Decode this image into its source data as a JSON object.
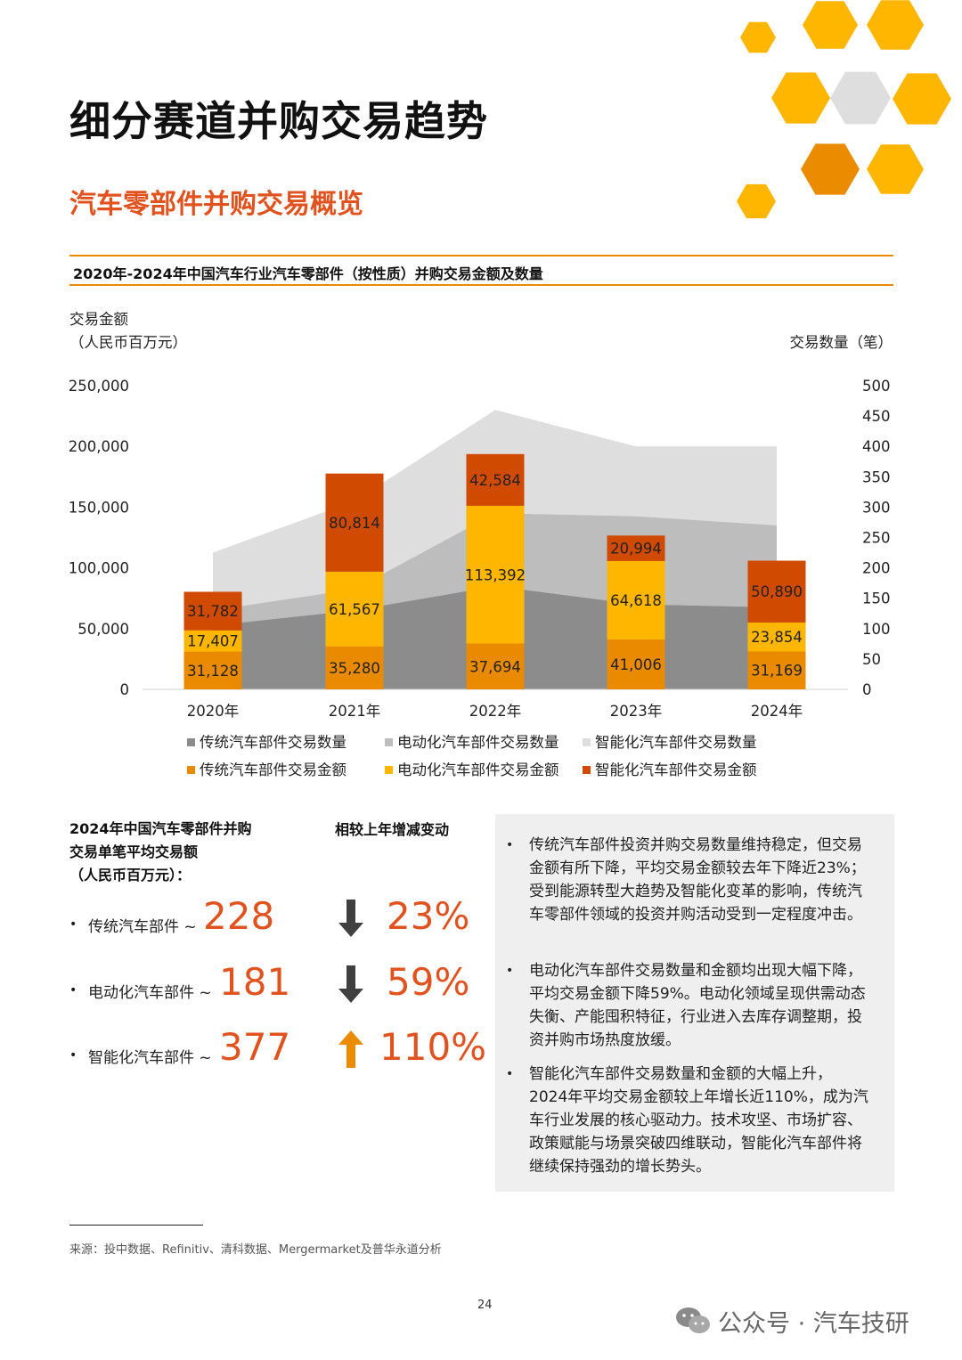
{
  "page": {
    "title": "细分赛道并购交易趋势",
    "subtitle": "汽车零部件并购交易概览",
    "page_number": "24",
    "source_note": "来源：投中数据、Refinitiv、清科数据、Mergermarket及普华永道分析",
    "watermark": "公众号 · 汽车技研"
  },
  "colors": {
    "traditional_amount": "#e98a00",
    "electric_amount": "#ffb600",
    "smart_amount": "#d04a02",
    "traditional_count": "#8c8c8c",
    "electric_count": "#bdbdbd",
    "smart_count": "#dedede",
    "accent": "#e0531f",
    "rule": "#eb8c00",
    "up_arrow": "#eb8c00",
    "down_arrow": "#404040"
  },
  "chart_data": {
    "type": "bar",
    "title": "2020年-2024年中国汽车行业汽车零部件（按性质）并购交易金额及数量",
    "ylabel_left": [
      "交易金额",
      "（人民币百万元）"
    ],
    "ylabel_right": "交易数量（笔）",
    "categories": [
      "2020年",
      "2021年",
      "2022年",
      "2023年",
      "2024年"
    ],
    "ylim_left": [
      0,
      250000
    ],
    "yticks_left": [
      "250,000",
      "200,000",
      "150,000",
      "100,000",
      "50,000",
      "0"
    ],
    "ylim_right": [
      0,
      500
    ],
    "yticks_right": [
      "500",
      "450",
      "400",
      "350",
      "300",
      "250",
      "200",
      "150",
      "100",
      "50",
      "0"
    ],
    "stacked_bars": [
      {
        "name": "传统汽车部件交易金额",
        "values": [
          31128,
          35280,
          37694,
          41006,
          31169
        ],
        "labels": [
          "31,128",
          "35,280",
          "37,694",
          "41,006",
          "31,169"
        ]
      },
      {
        "name": "电动化汽车部件交易金额",
        "values": [
          17407,
          61567,
          113392,
          64618,
          23854
        ],
        "labels": [
          "17,407",
          "61,567",
          "113,392",
          "64,618",
          "23,854"
        ]
      },
      {
        "name": "智能化汽车部件交易金额",
        "values": [
          31782,
          80814,
          42584,
          20994,
          50890
        ],
        "labels": [
          "31,782",
          "80,814",
          "42,584",
          "20,994",
          "50,890"
        ]
      }
    ],
    "stacked_areas": [
      {
        "name": "传统汽车部件交易数量",
        "values": [
          105,
          130,
          170,
          140,
          135
        ]
      },
      {
        "name": "电动化汽车部件交易数量",
        "values": [
          25,
          35,
          120,
          145,
          135
        ]
      },
      {
        "name": "智能化汽车部件交易数量",
        "values": [
          95,
          145,
          170,
          115,
          130
        ]
      }
    ],
    "legend": [
      {
        "label": "传统汽车部件交易数量",
        "color_key": "traditional_count"
      },
      {
        "label": "电动化汽车部件交易数量",
        "color_key": "electric_count"
      },
      {
        "label": "智能化汽车部件交易数量",
        "color_key": "smart_count"
      },
      {
        "label": "传统汽车部件交易金额",
        "color_key": "traditional_amount"
      },
      {
        "label": "电动化汽车部件交易金额",
        "color_key": "electric_amount"
      },
      {
        "label": "智能化汽车部件交易金额",
        "color_key": "smart_amount"
      }
    ],
    "legend_position": "bottom"
  },
  "summary": {
    "heading_lines": [
      "2024年中国汽车零部件并购",
      "交易单笔平均交易额",
      "（人民币百万元）："
    ],
    "change_heading": "相较上年增减变动",
    "rows": [
      {
        "label": "传统汽车部件 ~",
        "value": "228",
        "direction": "down",
        "change": "23%"
      },
      {
        "label": "电动化汽车部件 ~",
        "value": "181",
        "direction": "down",
        "change": "59%"
      },
      {
        "label": "智能化汽车部件 ~",
        "value": "377",
        "direction": "up",
        "change": "110%"
      }
    ]
  },
  "insights": [
    "传统汽车部件投资并购交易数量维持稳定，但交易金额有所下降，平均交易金额较去年下降近23%；受到能源转型大趋势及智能化变革的影响，传统汽车零部件领域的投资并购活动受到一定程度冲击。",
    "电动化汽车部件交易数量和金额均出现大幅下降，平均交易金额下降59%。电动化领域呈现供需动态失衡、产能囤积特征，行业进入去库存调整期，投资并购市场热度放缓。",
    "智能化汽车部件交易数量和金额的大幅上升，2024年平均交易金额较上年增长近110%，成为汽车行业发展的核心驱动力。技术攻坚、市场扩容、政策赋能与场景突破四维联动，智能化汽车部件将继续保持强劲的增长势头。"
  ]
}
